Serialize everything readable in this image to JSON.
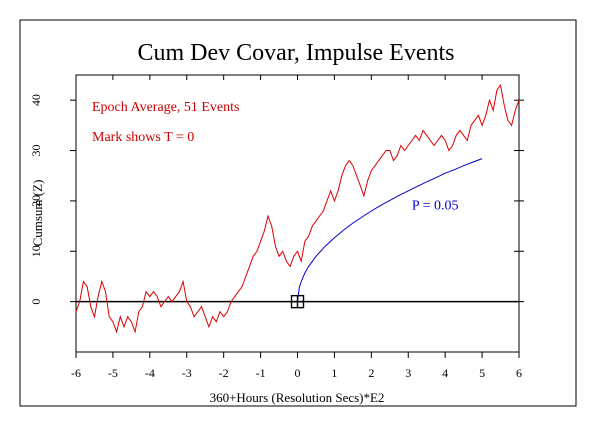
{
  "chart_data": {
    "type": "line",
    "title": "Cum Dev Covar, Impulse Events",
    "xlabel": "360+Hours (Resolution Secs)*E2",
    "ylabel": "Cumsum (Z)",
    "xlim": [
      -6,
      6
    ],
    "ylim": [
      -10,
      45
    ],
    "x_ticks": [
      "-6",
      "-5",
      "-4",
      "-3",
      "-2",
      "-1",
      "0",
      "1",
      "2",
      "3",
      "4",
      "5",
      "6"
    ],
    "y_ticks": [
      "0",
      "10",
      "20",
      "30",
      "40"
    ],
    "annotations": [
      "Epoch Average, 51 Events",
      "Mark shows T = 0"
    ],
    "marker": {
      "x": 0,
      "y": 0
    },
    "baseline": 0,
    "colors": {
      "data": "#dd0000",
      "envelope": "#0000cc",
      "axis": "#000000",
      "annotation": "#cc0000"
    },
    "series": [
      {
        "color": "#dd0000",
        "x": [
          -6,
          -5.9,
          -5.8,
          -5.7,
          -5.6,
          -5.5,
          -5.4,
          -5.3,
          -5.2,
          -5.1,
          -5.0,
          -4.9,
          -4.8,
          -4.7,
          -4.6,
          -4.5,
          -4.4,
          -4.3,
          -4.2,
          -4.1,
          -4.0,
          -3.9,
          -3.8,
          -3.7,
          -3.6,
          -3.5,
          -3.4,
          -3.3,
          -3.2,
          -3.1,
          -3.0,
          -2.9,
          -2.8,
          -2.7,
          -2.6,
          -2.5,
          -2.4,
          -2.3,
          -2.2,
          -2.1,
          -2.0,
          -1.9,
          -1.8,
          -1.7,
          -1.6,
          -1.5,
          -1.4,
          -1.3,
          -1.2,
          -1.1,
          -1.0,
          -0.9,
          -0.8,
          -0.7,
          -0.6,
          -0.5,
          -0.4,
          -0.3,
          -0.2,
          -0.1,
          0.0,
          0.1,
          0.2,
          0.3,
          0.4,
          0.5,
          0.6,
          0.7,
          0.8,
          0.9,
          1.0,
          1.1,
          1.2,
          1.3,
          1.4,
          1.5,
          1.6,
          1.7,
          1.8,
          1.9,
          2.0,
          2.1,
          2.2,
          2.3,
          2.4,
          2.5,
          2.6,
          2.7,
          2.8,
          2.9,
          3.0,
          3.1,
          3.2,
          3.3,
          3.4,
          3.5,
          3.6,
          3.7,
          3.8,
          3.9,
          4.0,
          4.1,
          4.2,
          4.3,
          4.4,
          4.5,
          4.6,
          4.7,
          4.8,
          4.9,
          5.0,
          5.1,
          5.2,
          5.3,
          5.4,
          5.5,
          5.6,
          5.7,
          5.8,
          5.9,
          6.0
        ],
        "y": [
          -2,
          0,
          4,
          3,
          -1,
          -3,
          1,
          4,
          2,
          -3,
          -4,
          -6,
          -3,
          -5,
          -3,
          -4,
          -6,
          -2,
          -1,
          2,
          1,
          2,
          1,
          -1,
          0,
          1,
          0,
          1,
          2,
          4,
          0,
          -1,
          -3,
          -2,
          -1,
          -3,
          -5,
          -3,
          -4,
          -2,
          -3,
          -2,
          0,
          1,
          2,
          3,
          5,
          7,
          9,
          10,
          12,
          14,
          17,
          15,
          11,
          9,
          10,
          8,
          7,
          9,
          10,
          8,
          12,
          13,
          15,
          16,
          17,
          18,
          20,
          22,
          20,
          22,
          25,
          27,
          28,
          27,
          25,
          23,
          21,
          24,
          26,
          27,
          28,
          29,
          30,
          30,
          28,
          29,
          31,
          30,
          31,
          32,
          33,
          32,
          34,
          33,
          32,
          31,
          32,
          33,
          32,
          30,
          31,
          33,
          34,
          33,
          32,
          35,
          36,
          37,
          35,
          37,
          40,
          38,
          42,
          43,
          39,
          36,
          35,
          38,
          40
        ]
      },
      {
        "name": "P = 0.05",
        "color": "#0000cc",
        "x": [
          0,
          0.05,
          0.1,
          0.2,
          0.3,
          0.5,
          0.75,
          1.0,
          1.25,
          1.5,
          1.75,
          2.0,
          2.25,
          2.5,
          2.75,
          3.0,
          3.25,
          3.5,
          3.75,
          4.0,
          4.25,
          4.5,
          4.75,
          5.0
        ],
        "y": [
          0,
          2.8,
          4.0,
          5.7,
          7.0,
          9.0,
          11.0,
          12.7,
          14.2,
          15.6,
          16.8,
          18.0,
          19.1,
          20.1,
          21.1,
          22.0,
          22.9,
          23.8,
          24.6,
          25.5,
          26.2,
          27.0,
          27.7,
          28.4
        ]
      }
    ]
  }
}
